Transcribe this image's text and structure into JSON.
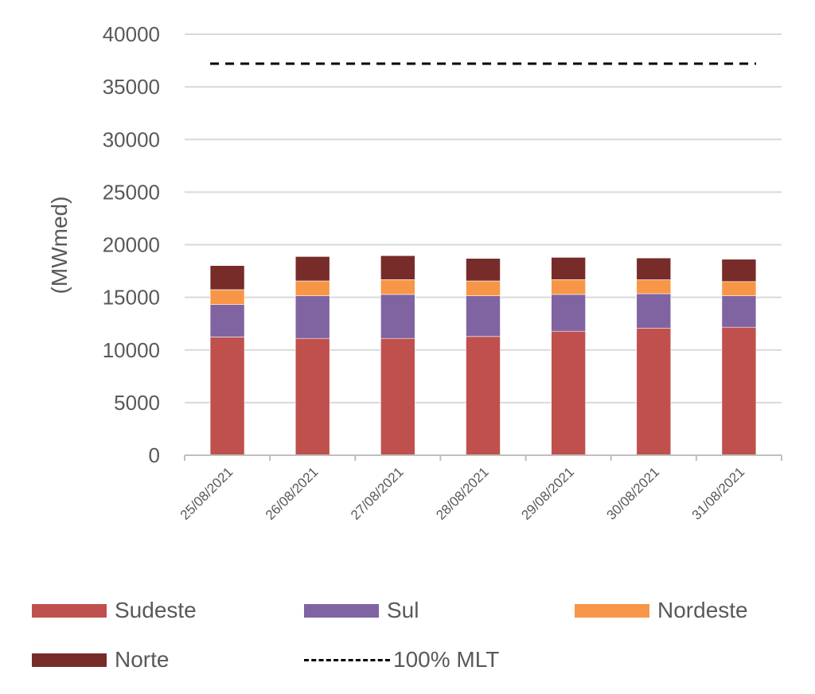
{
  "chart_data": {
    "type": "bar",
    "stacked": true,
    "title": "",
    "xlabel": "",
    "ylabel": "(MWmed)",
    "ylim": [
      0,
      40000
    ],
    "yticks": [
      0,
      5000,
      10000,
      15000,
      20000,
      25000,
      30000,
      35000,
      40000
    ],
    "grid": true,
    "legend_position": "bottom",
    "categories": [
      "25/08/2021",
      "26/08/2021",
      "27/08/2021",
      "28/08/2021",
      "29/08/2021",
      "30/08/2021",
      "31/08/2021"
    ],
    "series": [
      {
        "name": "Sudeste",
        "color": "#C0504D",
        "values": [
          11230,
          11100,
          11100,
          11280,
          11780,
          12080,
          12160
        ]
      },
      {
        "name": "Sul",
        "color": "#8064A2",
        "values": [
          3090,
          4050,
          4180,
          3870,
          3500,
          3270,
          2990
        ]
      },
      {
        "name": "Nordeste",
        "color": "#F79646",
        "values": [
          1410,
          1410,
          1400,
          1410,
          1400,
          1320,
          1350
        ]
      },
      {
        "name": "Norte",
        "color": "#772C2A",
        "values": [
          2290,
          2320,
          2280,
          2140,
          2120,
          2070,
          2120
        ]
      }
    ],
    "reference_line": {
      "name": "100% MLT",
      "value": 37200,
      "style": "dashed",
      "color": "#000000"
    }
  }
}
